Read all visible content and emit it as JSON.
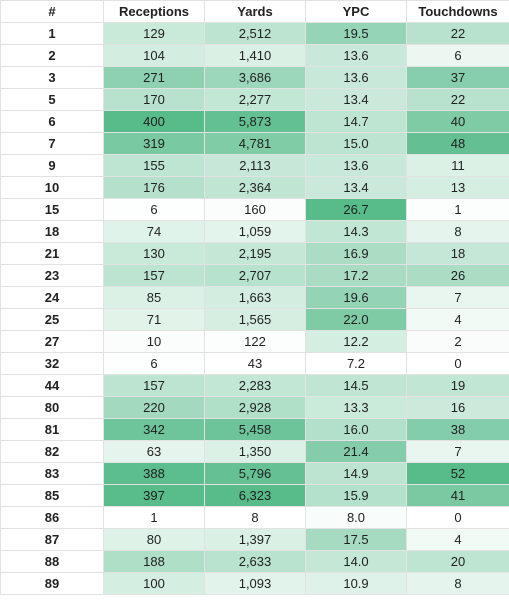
{
  "table": {
    "headers": [
      "#",
      "Receptions",
      "Yards",
      "YPC",
      "Touchdowns"
    ],
    "rows": [
      [
        "1",
        "129",
        "2,512",
        "19.5",
        "22"
      ],
      [
        "2",
        "104",
        "1,410",
        "13.6",
        "6"
      ],
      [
        "3",
        "271",
        "3,686",
        "13.6",
        "37"
      ],
      [
        "5",
        "170",
        "2,277",
        "13.4",
        "22"
      ],
      [
        "6",
        "400",
        "5,873",
        "14.7",
        "40"
      ],
      [
        "7",
        "319",
        "4,781",
        "15.0",
        "48"
      ],
      [
        "9",
        "155",
        "2,113",
        "13.6",
        "11"
      ],
      [
        "10",
        "176",
        "2,364",
        "13.4",
        "13"
      ],
      [
        "15",
        "6",
        "160",
        "26.7",
        "1"
      ],
      [
        "18",
        "74",
        "1,059",
        "14.3",
        "8"
      ],
      [
        "21",
        "130",
        "2,195",
        "16.9",
        "18"
      ],
      [
        "23",
        "157",
        "2,707",
        "17.2",
        "26"
      ],
      [
        "24",
        "85",
        "1,663",
        "19.6",
        "7"
      ],
      [
        "25",
        "71",
        "1,565",
        "22.0",
        "4"
      ],
      [
        "27",
        "10",
        "122",
        "12.2",
        "2"
      ],
      [
        "32",
        "6",
        "43",
        "7.2",
        "0"
      ],
      [
        "44",
        "157",
        "2,283",
        "14.5",
        "19"
      ],
      [
        "80",
        "220",
        "2,928",
        "13.3",
        "16"
      ],
      [
        "81",
        "342",
        "5,458",
        "16.0",
        "38"
      ],
      [
        "82",
        "63",
        "1,350",
        "21.4",
        "7"
      ],
      [
        "83",
        "388",
        "5,796",
        "14.9",
        "52"
      ],
      [
        "85",
        "397",
        "6,323",
        "15.9",
        "41"
      ],
      [
        "86",
        "1",
        "8",
        "8.0",
        "0"
      ],
      [
        "87",
        "80",
        "1,397",
        "17.5",
        "4"
      ],
      [
        "88",
        "188",
        "2,633",
        "14.0",
        "20"
      ],
      [
        "89",
        "100",
        "1,093",
        "10.9",
        "8"
      ]
    ]
  },
  "colors": {
    "scale_min": "#ffffff",
    "scale_max": "#57bb8a",
    "grid_line": "#e2e2e2",
    "text": "#222222"
  }
}
